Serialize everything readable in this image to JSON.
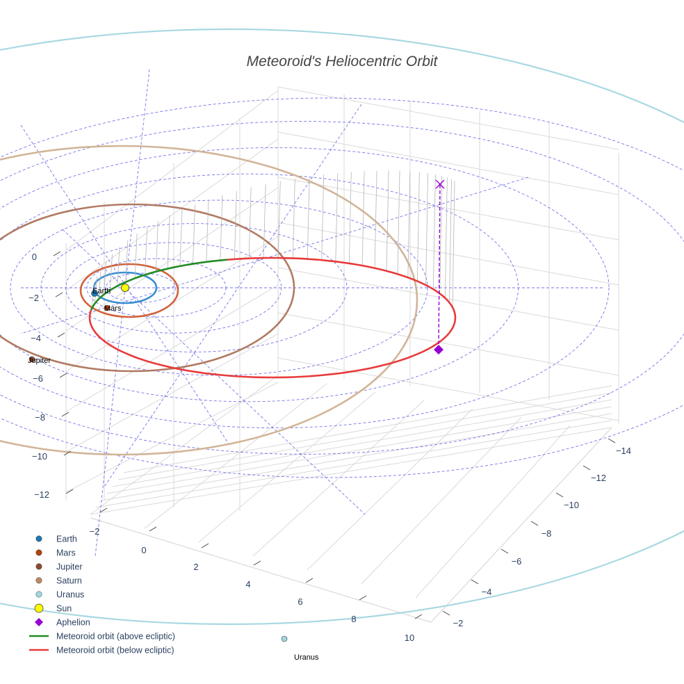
{
  "chart_data": {
    "type": "scatter3d",
    "title": "Meteoroid's Heliocentric Orbit",
    "axes": {
      "x_ticks": [
        "−2",
        "0",
        "2",
        "4",
        "6",
        "8",
        "10"
      ],
      "y_ticks": [
        "−14",
        "−12",
        "−10",
        "−8",
        "−6",
        "−4",
        "−2"
      ],
      "z_ticks": [
        "0",
        "−2",
        "−4",
        "−6",
        "−8",
        "−10",
        "−12"
      ],
      "grid": true
    },
    "planets": [
      {
        "name": "Earth",
        "color": "#1f77b4",
        "orbit_color": "#3a8fd0",
        "label": "Earth"
      },
      {
        "name": "Mars",
        "color": "#b5410b",
        "orbit_color": "#d2613a",
        "label": "Mars"
      },
      {
        "name": "Jupiter",
        "color": "#8c4a2f",
        "orbit_color": "#b07a62",
        "label": "Jupiter"
      },
      {
        "name": "Saturn",
        "color": "#c08a62",
        "orbit_color": "#d2b497",
        "label": ""
      },
      {
        "name": "Uranus",
        "color": "#9fd8e0",
        "orbit_color": "#a8d8e2",
        "label": "Uranus"
      }
    ],
    "sun": {
      "name": "Sun",
      "color": "#ffff00"
    },
    "aphelion": {
      "name": "Aphelion",
      "color": "#9400d3"
    },
    "meteoroid": {
      "above_name": "Meteoroid orbit (above ecliptic)",
      "above_color": "#228b22",
      "below_name": "Meteoroid orbit (below ecliptic)",
      "below_color": "#e83a3a"
    },
    "legend": {
      "position": "bottom-left",
      "items": [
        {
          "label": "Earth",
          "symbol": "dot",
          "color": "#1f77b4"
        },
        {
          "label": "Mars",
          "symbol": "dot",
          "color": "#b5410b"
        },
        {
          "label": "Jupiter",
          "symbol": "dot",
          "color": "#8c4a2f"
        },
        {
          "label": "Saturn",
          "symbol": "dot",
          "color": "#c08a62"
        },
        {
          "label": "Uranus",
          "symbol": "dot",
          "color": "#9fd8e0"
        },
        {
          "label": "Sun",
          "symbol": "big-dot",
          "color": "#ffff00"
        },
        {
          "label": "Aphelion",
          "symbol": "diamond",
          "color": "#9400d3"
        },
        {
          "label": "Meteoroid orbit (above ecliptic)",
          "symbol": "line",
          "color": "#228b22"
        },
        {
          "label": "Meteoroid orbit (below ecliptic)",
          "symbol": "line",
          "color": "#e83a3a"
        }
      ]
    }
  }
}
